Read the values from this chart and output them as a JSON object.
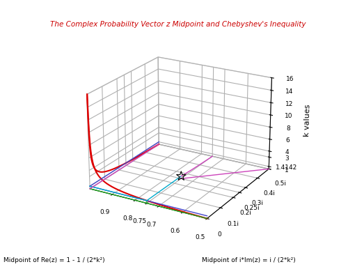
{
  "title": "The Complex Probability Vector z Midpoint and Chebyshev's Inequality",
  "title_color": "#cc0000",
  "zlabel": "k values",
  "xlabel_left": "Midpoint of Re(z) = 1 - 1 / (2*k²)",
  "xlabel_right": "Midpoint of i*Im(z) = i / (2*k²)",
  "re_ticks": [
    0.5,
    0.6,
    0.7,
    0.75,
    0.8,
    0.9
  ],
  "re_tick_labels": [
    "0.5",
    "0.6",
    "0.7",
    "0.75",
    "0.8",
    "0.9"
  ],
  "im_ticks": [
    0.0,
    0.1,
    0.2,
    0.25,
    0.3,
    0.4,
    0.5
  ],
  "im_tick_labels": [
    "0",
    "0.1i",
    "0.2i",
    "0.25i",
    "0.3i",
    "0.4i",
    "0.5i"
  ],
  "k_ticks": [
    1,
    1.4142,
    3,
    4,
    6,
    8,
    10,
    12,
    14,
    16
  ],
  "k_tick_labels": [
    "1",
    "1.4142",
    "3",
    "4",
    "6",
    "8",
    "10",
    "12",
    "14",
    "16"
  ],
  "background_color": "#ffffff",
  "line_red_color": "#dd0000",
  "line_blue_color": "#4444cc",
  "line_cyan_color": "#00aacc",
  "line_green_color": "#22aa22",
  "line_magenta_color": "#cc44bb",
  "elev": 22,
  "azim": -60
}
